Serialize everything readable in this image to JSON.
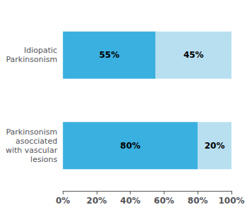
{
  "chart_data": {
    "type": "bar",
    "orientation": "horizontal",
    "stacked": true,
    "data_labels": true,
    "grid": false,
    "categories": [
      "Parkinsonism\nasocciated\nwith vascular\nlesions",
      "Idiopatic\nParkinsonism"
    ],
    "series": [
      {
        "color": "#3ab0e0",
        "values": [
          80,
          55
        ],
        "value_labels": [
          "80%",
          "55%"
        ]
      },
      {
        "color": "#b8dff0",
        "values": [
          20,
          45
        ],
        "value_labels": [
          "20%",
          "45%"
        ]
      }
    ],
    "xlim": [
      0,
      100
    ],
    "xticks": [
      {
        "value": 0,
        "label": "0%"
      },
      {
        "value": 20,
        "label": "20%"
      },
      {
        "value": 40,
        "label": "40%"
      },
      {
        "value": 60,
        "label": "60%"
      },
      {
        "value": 80,
        "label": "80%"
      },
      {
        "value": 100,
        "label": "100%"
      }
    ]
  }
}
